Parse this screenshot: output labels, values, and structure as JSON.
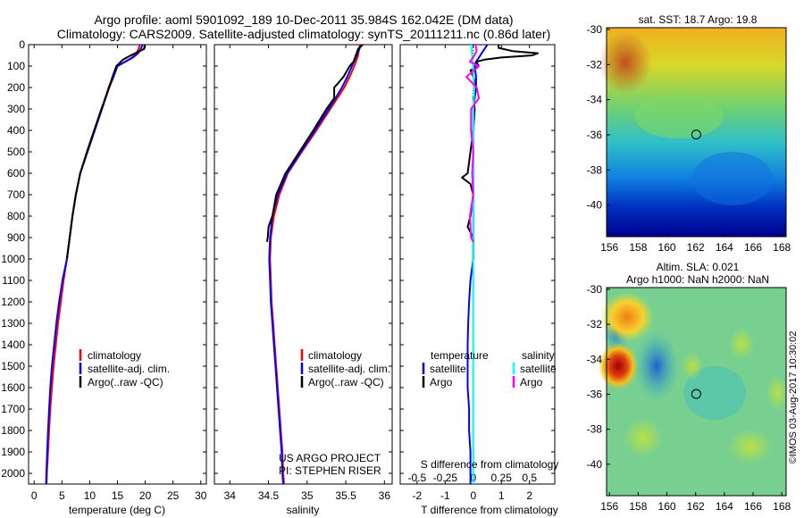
{
  "header": {
    "title_line1": "Argo profile: aoml 5901092_189 10-Dec-2011 35.984S 162.042E (DM data)",
    "title_line2": "Climatology: CARS2009. Satellite-adjusted climatology: synTS_20111211.nc (0.86d later)"
  },
  "credits": {
    "project": "US ARGO PROJECT",
    "pi": "PI: STEPHEN RISER",
    "watermark": "©IMOS 03-Aug-2017 10:30:02"
  },
  "maps": {
    "sst_title": "sat. SST: 18.7  Argo: 19.8",
    "sla_title_line1": "Altim. SLA: 0.021",
    "sla_title_line2": "Argo h1000: NaN  h2000: NaN",
    "lon_ticks": [
      "156",
      "158",
      "160",
      "162",
      "164",
      "166",
      "168"
    ],
    "lat_ticks": [
      "-30",
      "-32",
      "-34",
      "-36",
      "-38",
      "-40"
    ],
    "float_lon": 162.042,
    "float_lat": -35.984
  },
  "legend": {
    "climatology": "climatology",
    "satellite": "satellite-adj. clim.",
    "argo": "Argo(..raw -QC)",
    "temperature": "temperature",
    "salinity": "salinity",
    "sat_short": "satellite",
    "argo_short": "Argo"
  },
  "colors": {
    "climatology": "#ff0000",
    "satellite": "#0000ff",
    "argo": "#000000",
    "salinity_satellite": "#00ffff",
    "salinity_argo": "#ff00ff"
  },
  "chart_data": [
    {
      "type": "line",
      "xlabel": "temperature (deg C)",
      "ylim": [
        2050,
        0
      ],
      "xlim": [
        -1,
        31
      ],
      "x_ticks": [
        "0",
        "5",
        "10",
        "15",
        "20",
        "25",
        "30"
      ],
      "y_ticks": [
        "0",
        "100",
        "200",
        "300",
        "400",
        "500",
        "600",
        "700",
        "800",
        "900",
        "1000",
        "1100",
        "1200",
        "1300",
        "1400",
        "1500",
        "1600",
        "1700",
        "1800",
        "1900",
        "2000"
      ],
      "series": [
        {
          "name": "climatology",
          "depth": [
            0,
            20,
            40,
            60,
            80,
            100,
            150,
            200,
            300,
            400,
            500,
            600,
            700,
            800,
            900,
            1000,
            1100,
            1200,
            1300,
            1400,
            1500,
            1600,
            1700,
            1800,
            1900,
            2000,
            2050
          ],
          "values": [
            19.0,
            18.8,
            18.4,
            17.6,
            16.3,
            15.0,
            14.2,
            13.4,
            12.2,
            10.9,
            9.6,
            8.3,
            7.5,
            6.9,
            6.4,
            5.9,
            5.3,
            4.8,
            4.3,
            3.9,
            3.5,
            3.2,
            2.9,
            2.7,
            2.5,
            2.3,
            2.25
          ]
        },
        {
          "name": "satellite-adj. clim.",
          "depth": [
            0,
            20,
            40,
            60,
            80,
            100,
            150,
            200,
            300,
            400,
            500,
            600,
            700,
            800,
            900,
            1000,
            1100,
            1200,
            1300,
            1400,
            1500,
            1600,
            1700,
            1800,
            1900,
            2000,
            2050
          ],
          "values": [
            19.5,
            19.2,
            18.7,
            17.8,
            16.4,
            15.0,
            14.3,
            13.5,
            12.2,
            10.9,
            9.6,
            8.3,
            7.5,
            6.9,
            6.4,
            5.9,
            5.1,
            4.5,
            4.0,
            3.6,
            3.2,
            2.9,
            2.7,
            2.5,
            2.35,
            2.2,
            2.15
          ]
        },
        {
          "name": "Argo(..raw -QC)",
          "depth": [
            0,
            20,
            30,
            50,
            70,
            90,
            100,
            150,
            200,
            300,
            400,
            500,
            600,
            700,
            800,
            900,
            1000
          ],
          "values": [
            19.9,
            19.8,
            19.0,
            17.4,
            16.0,
            15.2,
            14.8,
            14.1,
            13.5,
            12.1,
            10.8,
            9.5,
            8.3,
            7.5,
            6.9,
            6.4,
            5.9
          ]
        }
      ]
    },
    {
      "type": "line",
      "xlabel": "salinity",
      "ylim": [
        2050,
        0
      ],
      "xlim": [
        33.8,
        36.1
      ],
      "x_ticks": [
        "34",
        "34.5",
        "35",
        "35.5",
        "36"
      ],
      "series": [
        {
          "name": "climatology",
          "depth": [
            0,
            50,
            100,
            150,
            200,
            300,
            400,
            500,
            600,
            700,
            800,
            900,
            1000,
            1100,
            1200,
            1300,
            1400,
            1500,
            1600,
            1700,
            1800,
            1900,
            2000,
            2050
          ],
          "values": [
            35.68,
            35.66,
            35.61,
            35.55,
            35.48,
            35.3,
            35.12,
            34.93,
            34.75,
            34.64,
            34.57,
            34.53,
            34.52,
            34.53,
            34.54,
            34.56,
            34.58,
            34.6,
            34.62,
            34.64,
            34.66,
            34.68,
            34.69,
            34.7
          ]
        },
        {
          "name": "satellite-adj. clim.",
          "depth": [
            0,
            50,
            100,
            150,
            200,
            300,
            400,
            500,
            600,
            700,
            800,
            900,
            1000,
            1100,
            1200,
            1300,
            1400,
            1500,
            1600,
            1700,
            1800,
            1900,
            2000,
            2050
          ],
          "values": [
            35.7,
            35.64,
            35.58,
            35.52,
            35.45,
            35.28,
            35.1,
            34.92,
            34.74,
            34.62,
            34.55,
            34.52,
            34.51,
            34.52,
            34.53,
            34.55,
            34.57,
            34.59,
            34.61,
            34.63,
            34.65,
            34.67,
            34.68,
            34.69
          ]
        },
        {
          "name": "Argo(..raw -QC)",
          "depth": [
            0,
            20,
            50,
            80,
            100,
            150,
            180,
            200,
            250,
            300,
            400,
            500,
            600,
            700,
            800,
            850,
            900,
            920
          ],
          "values": [
            35.72,
            35.66,
            35.63,
            35.6,
            35.55,
            35.47,
            35.4,
            35.35,
            35.35,
            35.25,
            35.08,
            34.9,
            34.72,
            34.6,
            34.55,
            34.5,
            34.49,
            34.48
          ]
        }
      ]
    },
    {
      "type": "line",
      "xlabel": "T difference from climatology",
      "x2label": "S difference from climatology",
      "ylim": [
        2050,
        0
      ],
      "xlim": [
        -2.6,
        2.9
      ],
      "x_ticks": [
        "-2",
        "-1",
        "0",
        "1",
        "2"
      ],
      "x2_ticks": [
        "-0.5",
        "-0.25",
        "0",
        "0.25",
        "0.5"
      ],
      "series": [
        {
          "name": "temperature satellite",
          "depth": [
            0,
            20,
            40,
            60,
            80,
            100,
            150,
            200,
            300,
            400,
            500,
            600,
            700,
            800,
            900,
            1000,
            1100,
            1200,
            1300,
            1400,
            1500,
            1600,
            1700,
            1800,
            1900,
            2000,
            2050
          ],
          "values": [
            0.5,
            0.4,
            0.3,
            0.2,
            0.1,
            0.05,
            0.1,
            0.1,
            0.0,
            0.0,
            0.0,
            0.0,
            0.0,
            0.0,
            0.0,
            0.0,
            -0.1,
            -0.15,
            -0.18,
            -0.2,
            -0.2,
            -0.2,
            -0.15,
            -0.15,
            -0.1,
            -0.1,
            -0.1
          ]
        },
        {
          "name": "temperature Argo",
          "depth": [
            0,
            15,
            30,
            40,
            50,
            60,
            70,
            80,
            100,
            120,
            150,
            200,
            250,
            300,
            400,
            500,
            600,
            620,
            650,
            700,
            800,
            850,
            900,
            1000
          ],
          "values": [
            0.9,
            0.9,
            1.4,
            2.3,
            2.1,
            1.0,
            0.4,
            0.1,
            0.2,
            -0.1,
            0.0,
            0.1,
            0.0,
            0.05,
            0.0,
            -0.1,
            -0.2,
            -0.4,
            -0.1,
            0.0,
            -0.1,
            -0.2,
            0.0,
            0.0
          ]
        },
        {
          "name": "salinity satellite",
          "depth": [
            0,
            50,
            100,
            150,
            200,
            300,
            400,
            500,
            600,
            700,
            800,
            900,
            1000,
            1200,
            1400,
            1600,
            1800,
            2000,
            2050
          ],
          "values": [
            -0.02,
            -0.01,
            0.0,
            0.0,
            0.01,
            0.0,
            0.0,
            0.0,
            0.0,
            0.0,
            0.0,
            0.0,
            0.0,
            0.0,
            0.0,
            0.0,
            0.0,
            0.0,
            0.0
          ]
        },
        {
          "name": "salinity Argo",
          "depth": [
            0,
            30,
            50,
            80,
            100,
            150,
            200,
            250,
            300,
            400,
            500,
            600,
            700,
            800,
            900,
            920
          ],
          "values": [
            0.02,
            0.03,
            0.01,
            -0.03,
            0.05,
            -0.06,
            0.03,
            0.05,
            -0.02,
            -0.02,
            0.0,
            -0.01,
            0.0,
            -0.03,
            -0.02,
            0.0
          ]
        }
      ]
    }
  ]
}
